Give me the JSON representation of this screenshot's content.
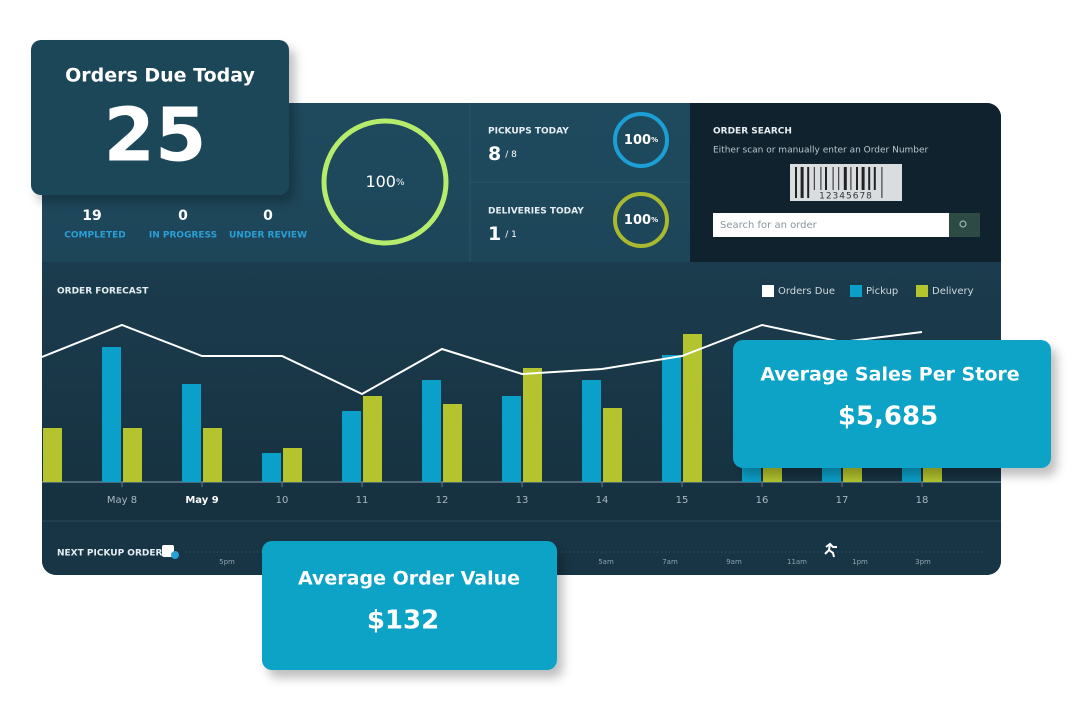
{
  "header_card": {
    "title": "Orders Due Today",
    "value": "25"
  },
  "status": [
    {
      "value": "19",
      "label": "COMPLETED"
    },
    {
      "value": "0",
      "label": "IN PROGRESS"
    },
    {
      "value": "0",
      "label": "UNDER REVIEW"
    }
  ],
  "overall_progress": {
    "value": "100",
    "unit": "%"
  },
  "pickups": {
    "label": "PICKUPS TODAY",
    "count": "8",
    "total": "/ 8",
    "progress": {
      "value": "100",
      "unit": "%"
    }
  },
  "deliveries": {
    "label": "DELIVERIES TODAY",
    "count": "1",
    "total": "/ 1",
    "progress": {
      "value": "100",
      "unit": "%"
    }
  },
  "order_search": {
    "title": "ORDER SEARCH",
    "hint": "Either scan or manually enter an Order Number",
    "barcode": "12345678",
    "placeholder": "Search for an order"
  },
  "chart_data": {
    "type": "bar",
    "title": "ORDER FORECAST",
    "categories": [
      null,
      "May 8",
      "May 9",
      "10",
      "11",
      "12",
      "13",
      "14",
      "15",
      "16",
      "17",
      "18"
    ],
    "series": [
      {
        "name": "Orders Due",
        "color": "#ffffff",
        "type": "line",
        "values": [
          125,
          157,
          126,
          126,
          88,
          133,
          108,
          113,
          126,
          157,
          140,
          150
        ]
      },
      {
        "name": "Pickup",
        "color": "#0ba0c9",
        "values": [
          null,
          135,
          98,
          29,
          71,
          102,
          86,
          102,
          127,
          90,
          80,
          85
        ]
      },
      {
        "name": "Delivery",
        "color": "#b3c42e",
        "values": [
          54,
          54,
          54,
          34,
          86,
          78,
          114,
          74,
          148,
          70,
          60,
          65
        ]
      }
    ],
    "ylim": [
      0,
      200
    ]
  },
  "timeline": {
    "label": "NEXT PICKUP ORDER",
    "times": [
      "5pm",
      "5am",
      "7am",
      "9am",
      "11am",
      "1pm",
      "3pm"
    ]
  },
  "sales_card": {
    "title": "Average Sales Per Store",
    "value": "$5,685"
  },
  "order_value_card": {
    "title": "Average Order Value",
    "value": "$132"
  }
}
